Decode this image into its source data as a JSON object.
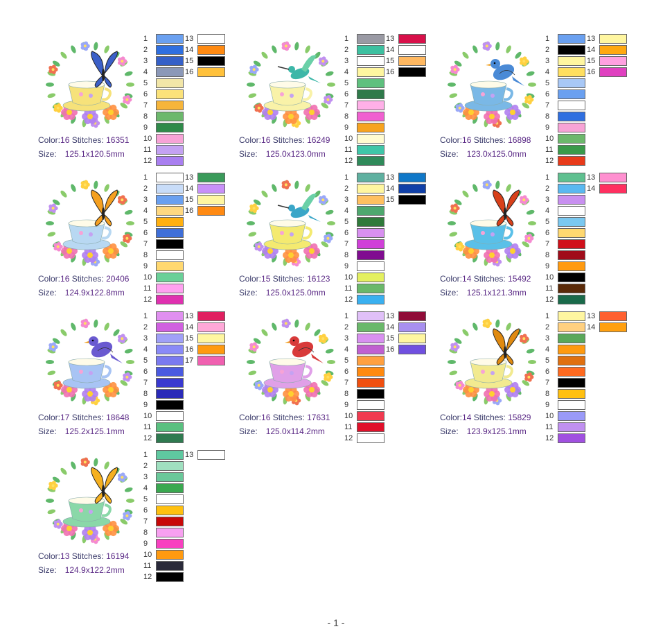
{
  "footer": "- 1 -",
  "labels": {
    "color": "Color:",
    "stitches": "Stitches:",
    "size": "Size:"
  },
  "designs": [
    {
      "motif": "butterfly",
      "color_count": "16",
      "stitches": "16351",
      "size": "125.1x120.5mm",
      "cup": "#f6e27a",
      "accent": "#3b5fc8",
      "colors": [
        "#6aa0f0",
        "#2f6fe0",
        "#3560c8",
        "#8b98b8",
        "#f2e6a8",
        "#fbe27a",
        "#f6b53b",
        "#6cb86c",
        "#2f8a4a",
        "#f7a3d6",
        "#c4a2f2",
        "#a97ff0",
        "#ffffff",
        "#ff8a12",
        "#000000",
        "#ffc13b"
      ]
    },
    {
      "motif": "hummingbird",
      "color_count": "16",
      "stitches": "16249",
      "size": "125.0x123.0mm",
      "cup": "#f9f2a8",
      "accent": "#3cb7a8",
      "colors": [
        "#9a9aa4",
        "#3dc0a0",
        "#ffffff",
        "#fff6a0",
        "#5fc07e",
        "#2f7a4a",
        "#ffb0e8",
        "#f060d0",
        "#f7a320",
        "#fffbd0",
        "#3fc6a8",
        "#2f8a5a",
        "#d8104a",
        "#ffffff",
        "#ffb860",
        "#000000"
      ]
    },
    {
      "motif": "bird",
      "color_count": "16",
      "stitches": "16898",
      "size": "123.0x125.0mm",
      "cup": "#7ab8e6",
      "accent": "#4a8ad6",
      "colors": [
        "#6aa0f0",
        "#000000",
        "#fff6a0",
        "#ffdf60",
        "#a8c8f6",
        "#6aa0f0",
        "#ffffff",
        "#2f6fe0",
        "#f7a3d6",
        "#6cb86c",
        "#3a9a4a",
        "#e83a1a",
        "#fff6a0",
        "#ffa810",
        "#ffa0e0",
        "#e040c0"
      ]
    },
    {
      "motif": "butterfly",
      "color_count": "16",
      "stitches": "20406",
      "size": "124.9x122.8mm",
      "cup": "#b8d8f2",
      "accent": "#f5a020",
      "colors": [
        "#ffffff",
        "#c8dcf8",
        "#6aa0f0",
        "#ffd880",
        "#ffb010",
        "#3f6fd8",
        "#000000",
        "#ffffff",
        "#ffd870",
        "#6ad098",
        "#ffa0f0",
        "#e030b0",
        "#3a9a5a",
        "#c890f8",
        "#fff6a0",
        "#ff8a12"
      ]
    },
    {
      "motif": "hummingbird",
      "color_count": "15",
      "stitches": "16123",
      "size": "125.0x125.0mm",
      "cup": "#f4ea70",
      "accent": "#3aa6c8",
      "colors": [
        "#5fb0a0",
        "#fff6a0",
        "#ffc060",
        "#4ea86e",
        "#2f7a3a",
        "#d890f0",
        "#d040d8",
        "#800c90",
        "#ffffff",
        "#e4f060",
        "#6ab86a",
        "#3ab0f0",
        "#1078c8",
        "#1040a8",
        "#000000"
      ]
    },
    {
      "motif": "butterfly",
      "color_count": "14",
      "stitches": "15492",
      "size": "125.1x121.3mm",
      "cup": "#5ac0e8",
      "accent": "#d8401a",
      "colors": [
        "#5fc090",
        "#5ab8f0",
        "#c890f0",
        "#ffffff",
        "#7ac8f0",
        "#ffd870",
        "#d0101a",
        "#a00c1a",
        "#ff9a10",
        "#000000",
        "#5a2a08",
        "#1a6a4a",
        "#ff90d0",
        "#ff3060"
      ]
    },
    {
      "motif": "bird",
      "color_count": "17",
      "stitches": "18648",
      "size": "125.2x125.1mm",
      "cup": "#a8c4f4",
      "accent": "#6a5ad0",
      "colors": [
        "#e090f0",
        "#d060e0",
        "#a0a0f8",
        "#8a8af8",
        "#7a7af0",
        "#4a5ae0",
        "#3a3ad0",
        "#2a2ab8",
        "#000000",
        "#ffffff",
        "#5ac080",
        "#2f7a50",
        "#e02060",
        "#ffa8d8",
        "#fff6a0",
        "#ff9a10",
        "#f060b0"
      ]
    },
    {
      "motif": "bird",
      "color_count": "16",
      "stitches": "17631",
      "size": "125.0x114.2mm",
      "cup": "#e0a0e8",
      "accent": "#d83a3a",
      "colors": [
        "#e0c0f8",
        "#6ab86a",
        "#d890f0",
        "#c060d0",
        "#ffa040",
        "#ff8a10",
        "#f05010",
        "#000000",
        "#ffffff",
        "#f03a50",
        "#e0102a",
        "#ffffff",
        "#900c38",
        "#a890f0",
        "#fff6a0",
        "#7050e0"
      ]
    },
    {
      "motif": "butterfly",
      "color_count": "14",
      "stitches": "15829",
      "size": "123.9x125.1mm",
      "cup": "#f2ea90",
      "accent": "#e08a10",
      "colors": [
        "#fff6a0",
        "#ffd080",
        "#5aa85a",
        "#ff9a10",
        "#e07010",
        "#ff6a20",
        "#000000",
        "#ffc010",
        "#ffffff",
        "#9a9af8",
        "#c090f0",
        "#a050e0",
        "#ff6030",
        "#ffa010"
      ]
    },
    {
      "motif": "butterfly",
      "color_count": "13",
      "stitches": "16194",
      "size": "124.9x122.2mm",
      "cup": "#8ad8a8",
      "accent": "#f5b020",
      "colors": [
        "#5fc8a0",
        "#a0e0c0",
        "#6ac89a",
        "#3aa850",
        "#ffffff",
        "#ffc010",
        "#c80808",
        "#f8a0f0",
        "#f840c0",
        "#ff9a10",
        "#2a2a3a",
        "#000000",
        "#ffffff"
      ]
    }
  ]
}
